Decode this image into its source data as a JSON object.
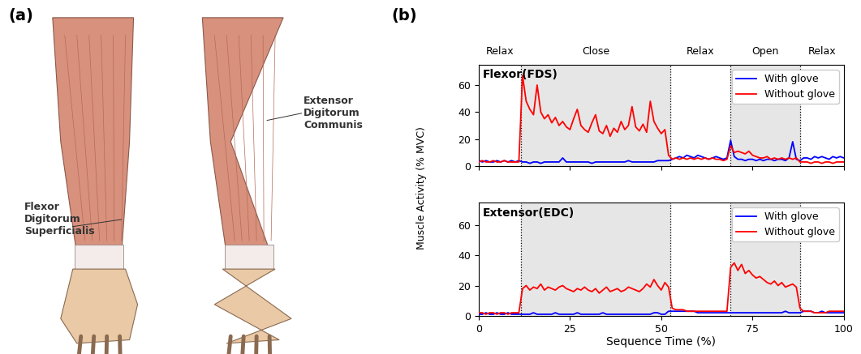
{
  "figure": {
    "panel_labels": [
      "(a)",
      "(b)"
    ],
    "illustration_labels": [
      "Flexor\nDigitorum\nSuperficialis",
      "Extensor\nDigitorum\nCommunis"
    ],
    "y_label": "Muscle Activity (% MVC)",
    "x_label": "Sequence Time (%)",
    "phases": [
      {
        "label": "Relax",
        "start": 0,
        "end": 11.5
      },
      {
        "label": "Close",
        "start": 11.5,
        "end": 52.5
      },
      {
        "label": "Relax",
        "start": 52.5,
        "end": 69
      },
      {
        "label": "Open",
        "start": 69,
        "end": 88
      },
      {
        "label": "Relax",
        "start": 88,
        "end": 100
      }
    ]
  },
  "chart_data": [
    {
      "type": "line",
      "title": "Flexor(FDS)",
      "x": [
        0,
        1,
        2,
        3,
        4,
        5,
        6,
        7,
        8,
        9,
        10,
        11,
        12,
        13,
        14,
        15,
        16,
        17,
        18,
        19,
        20,
        21,
        22,
        23,
        24,
        25,
        26,
        27,
        28,
        29,
        30,
        31,
        32,
        33,
        34,
        35,
        36,
        37,
        38,
        39,
        40,
        41,
        42,
        43,
        44,
        45,
        46,
        47,
        48,
        49,
        50,
        51,
        52,
        53,
        54,
        55,
        56,
        57,
        58,
        59,
        60,
        61,
        62,
        63,
        64,
        65,
        66,
        67,
        68,
        69,
        70,
        71,
        72,
        73,
        74,
        75,
        76,
        77,
        78,
        79,
        80,
        81,
        82,
        83,
        84,
        85,
        86,
        87,
        88,
        89,
        90,
        91,
        92,
        93,
        94,
        95,
        96,
        97,
        98,
        99,
        100
      ],
      "series": [
        {
          "name": "With glove",
          "color": "#0000ff",
          "values": [
            4,
            3,
            4,
            3,
            3,
            4,
            3,
            4,
            3,
            4,
            3,
            4,
            3,
            3,
            2,
            3,
            3,
            2,
            3,
            3,
            3,
            3,
            3,
            6,
            3,
            3,
            3,
            3,
            3,
            3,
            3,
            2,
            3,
            3,
            3,
            3,
            3,
            3,
            3,
            3,
            3,
            4,
            3,
            3,
            3,
            3,
            3,
            3,
            3,
            4,
            4,
            4,
            4,
            5,
            6,
            7,
            6,
            8,
            7,
            6,
            8,
            7,
            6,
            5,
            6,
            7,
            6,
            5,
            6,
            19,
            7,
            5,
            5,
            4,
            5,
            5,
            4,
            5,
            4,
            5,
            5,
            4,
            5,
            5,
            4,
            6,
            18,
            5,
            4,
            6,
            6,
            5,
            7,
            6,
            7,
            6,
            5,
            7,
            6,
            7,
            6
          ]
        },
        {
          "name": "Without glove",
          "color": "#ff0000",
          "values": [
            3,
            4,
            3,
            3,
            4,
            3,
            3,
            4,
            3,
            3,
            3,
            3,
            67,
            48,
            42,
            38,
            60,
            40,
            35,
            38,
            32,
            36,
            30,
            33,
            29,
            27,
            35,
            42,
            30,
            27,
            25,
            32,
            38,
            26,
            24,
            30,
            22,
            28,
            25,
            33,
            27,
            30,
            44,
            29,
            26,
            31,
            25,
            48,
            33,
            28,
            24,
            27,
            8,
            5,
            6,
            5,
            6,
            5,
            6,
            5,
            6,
            5,
            6,
            5,
            6,
            5,
            5,
            4,
            5,
            15,
            10,
            11,
            10,
            9,
            11,
            8,
            7,
            6,
            6,
            7,
            5,
            6,
            5,
            6,
            5,
            6,
            5,
            6,
            3,
            3,
            3,
            2,
            3,
            3,
            2,
            3,
            3,
            2,
            3,
            3,
            3
          ]
        }
      ],
      "xlim": [
        0,
        100
      ],
      "xticks": [
        0,
        25,
        50,
        75,
        100
      ],
      "ylim": [
        0,
        75
      ],
      "yticks": [
        0,
        20,
        40,
        60
      ],
      "legend": "upper right",
      "tick_labels": "y"
    },
    {
      "type": "line",
      "title": "Extensor(EDC)",
      "x": [
        0,
        1,
        2,
        3,
        4,
        5,
        6,
        7,
        8,
        9,
        10,
        11,
        12,
        13,
        14,
        15,
        16,
        17,
        18,
        19,
        20,
        21,
        22,
        23,
        24,
        25,
        26,
        27,
        28,
        29,
        30,
        31,
        32,
        33,
        34,
        35,
        36,
        37,
        38,
        39,
        40,
        41,
        42,
        43,
        44,
        45,
        46,
        47,
        48,
        49,
        50,
        51,
        52,
        53,
        54,
        55,
        56,
        57,
        58,
        59,
        60,
        61,
        62,
        63,
        64,
        65,
        66,
        67,
        68,
        69,
        70,
        71,
        72,
        73,
        74,
        75,
        76,
        77,
        78,
        79,
        80,
        81,
        82,
        83,
        84,
        85,
        86,
        87,
        88,
        89,
        90,
        91,
        92,
        93,
        94,
        95,
        96,
        97,
        98,
        99,
        100
      ],
      "series": [
        {
          "name": "With glove",
          "color": "#0000ff",
          "values": [
            1,
            1,
            2,
            1,
            1,
            2,
            1,
            1,
            2,
            1,
            1,
            1,
            1,
            1,
            1,
            2,
            1,
            1,
            1,
            1,
            1,
            2,
            1,
            1,
            1,
            1,
            1,
            2,
            1,
            1,
            1,
            1,
            1,
            1,
            2,
            1,
            1,
            1,
            1,
            1,
            1,
            1,
            1,
            1,
            1,
            1,
            1,
            1,
            2,
            2,
            1,
            1,
            3,
            3,
            3,
            3,
            3,
            3,
            3,
            3,
            2,
            2,
            2,
            2,
            2,
            2,
            2,
            2,
            2,
            2,
            2,
            2,
            2,
            2,
            2,
            2,
            2,
            2,
            2,
            2,
            2,
            2,
            2,
            2,
            3,
            2,
            2,
            2,
            2,
            3,
            3,
            3,
            2,
            2,
            3,
            2,
            2,
            2,
            2,
            2,
            2
          ]
        },
        {
          "name": "Without glove",
          "color": "#ff0000",
          "values": [
            2,
            2,
            1,
            2,
            2,
            1,
            2,
            2,
            1,
            2,
            2,
            2,
            18,
            20,
            17,
            19,
            18,
            21,
            17,
            19,
            18,
            17,
            19,
            20,
            18,
            17,
            16,
            18,
            17,
            19,
            17,
            16,
            18,
            15,
            17,
            19,
            16,
            17,
            18,
            16,
            17,
            19,
            18,
            17,
            16,
            18,
            21,
            19,
            24,
            20,
            17,
            22,
            19,
            5,
            4,
            4,
            4,
            3,
            3,
            3,
            3,
            3,
            3,
            3,
            3,
            3,
            3,
            3,
            3,
            32,
            35,
            30,
            34,
            28,
            30,
            27,
            25,
            26,
            24,
            22,
            21,
            23,
            20,
            22,
            19,
            20,
            21,
            19,
            5,
            3,
            3,
            3,
            2,
            2,
            2,
            2,
            3,
            3,
            3,
            3,
            3
          ]
        }
      ],
      "xlim": [
        0,
        100
      ],
      "xticks": [
        0,
        25,
        50,
        75,
        100
      ],
      "ylim": [
        0,
        75
      ],
      "yticks": [
        0,
        20,
        40,
        60
      ],
      "legend": "upper right",
      "tick_labels": true
    }
  ]
}
